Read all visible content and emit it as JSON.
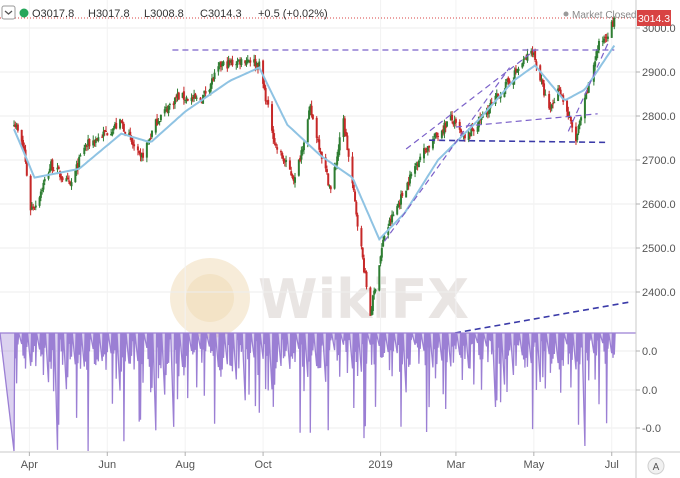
{
  "header": {
    "open": "O3017.8",
    "high": "H3017.8",
    "low": "L3008.8",
    "close": "C3014.3",
    "change": "+0.5 (+0.02%)",
    "status": "Market Closed",
    "last_price": "3014.3"
  },
  "watermark": "WikiFX",
  "footer": {
    "auto_label": "A"
  },
  "colors": {
    "up": "#2e7d32",
    "down": "#c62828",
    "ma": "#8fc3e3",
    "trend": "#7b61c9",
    "trend_dark": "#3a3aa8",
    "osc": "#9b7fd4",
    "price_tag": "#d84343"
  },
  "chart_data": [
    {
      "type": "candlestick",
      "title": "",
      "x_ticks": [
        "Apr",
        "Jun",
        "Aug",
        "Oct",
        "2019",
        "Mar",
        "May",
        "Jul"
      ],
      "y_ticks": [
        "3000.0",
        "2900.0",
        "2800.0",
        "2700.0",
        "2600.0",
        "2500.0",
        "2400.0"
      ],
      "ylim": [
        2340,
        3030
      ],
      "last_price": 3014.3,
      "anchor_path": [
        [
          "2018-03-20",
          2790
        ],
        [
          "2018-03-28",
          2720
        ],
        [
          "2018-04-02",
          2590
        ],
        [
          "2018-04-06",
          2600
        ],
        [
          "2018-04-18",
          2690
        ],
        [
          "2018-05-03",
          2640
        ],
        [
          "2018-05-14",
          2730
        ],
        [
          "2018-06-12",
          2785
        ],
        [
          "2018-06-27",
          2700
        ],
        [
          "2018-07-10",
          2790
        ],
        [
          "2018-07-26",
          2845
        ],
        [
          "2018-08-13",
          2835
        ],
        [
          "2018-08-29",
          2915
        ],
        [
          "2018-09-20",
          2930
        ],
        [
          "2018-09-28",
          2915
        ],
        [
          "2018-10-11",
          2730
        ],
        [
          "2018-10-26",
          2655
        ],
        [
          "2018-11-07",
          2815
        ],
        [
          "2018-11-23",
          2630
        ],
        [
          "2018-12-03",
          2790
        ],
        [
          "2018-12-24",
          2350
        ],
        [
          "2019-01-04",
          2530
        ],
        [
          "2019-01-31",
          2705
        ],
        [
          "2019-02-25",
          2795
        ],
        [
          "2019-03-08",
          2745
        ],
        [
          "2019-04-30",
          2950
        ],
        [
          "2019-05-13",
          2810
        ],
        [
          "2019-05-21",
          2865
        ],
        [
          "2019-06-03",
          2745
        ],
        [
          "2019-06-20",
          2955
        ],
        [
          "2019-07-03",
          3014.3
        ]
      ],
      "moving_average": [
        [
          "2018-03-20",
          2770
        ],
        [
          "2018-04-05",
          2660
        ],
        [
          "2018-05-10",
          2680
        ],
        [
          "2018-06-12",
          2760
        ],
        [
          "2018-07-05",
          2740
        ],
        [
          "2018-08-01",
          2810
        ],
        [
          "2018-09-05",
          2880
        ],
        [
          "2018-09-28",
          2910
        ],
        [
          "2018-10-20",
          2780
        ],
        [
          "2018-11-15",
          2710
        ],
        [
          "2018-12-10",
          2660
        ],
        [
          "2018-12-31",
          2520
        ],
        [
          "2019-01-20",
          2580
        ],
        [
          "2019-02-15",
          2700
        ],
        [
          "2019-03-20",
          2795
        ],
        [
          "2019-04-15",
          2880
        ],
        [
          "2019-05-02",
          2915
        ],
        [
          "2019-05-25",
          2835
        ],
        [
          "2019-06-10",
          2860
        ],
        [
          "2019-07-03",
          2960
        ]
      ],
      "trendlines": [
        {
          "style": "dashed",
          "color": "trend",
          "from": [
            "2018-07-22",
            2950
          ],
          "to": [
            "2019-07-03",
            2950
          ]
        },
        {
          "style": "dashed",
          "color": "trend",
          "from": [
            "2019-01-21",
            2725
          ],
          "to": [
            "2019-05-02",
            2950
          ]
        },
        {
          "style": "dashed",
          "color": "trend",
          "from": [
            "2019-01-04",
            2515
          ],
          "to": [
            "2019-04-12",
            2910
          ]
        },
        {
          "style": "dashed",
          "color": "trend",
          "from": [
            "2019-03-01",
            2775
          ],
          "to": [
            "2019-06-20",
            2805
          ]
        },
        {
          "style": "dashed",
          "color": "trend",
          "from": [
            "2019-05-28",
            2765
          ],
          "to": [
            "2019-06-28",
            2965
          ]
        },
        {
          "style": "dashed",
          "color": "trend_dark",
          "from": [
            "2019-02-08",
            2745
          ],
          "to": [
            "2019-06-28",
            2740
          ]
        }
      ]
    },
    {
      "type": "bar",
      "y_ticks": [
        "0.0",
        "0.0",
        "-0.0"
      ],
      "ylim": [
        -0.1,
        0.0
      ],
      "trendline": {
        "style": "dashed",
        "color": "trend_dark",
        "from": [
          "2019-03-01",
          0.0
        ],
        "to": [
          "2019-07-20",
          0.012
        ]
      }
    }
  ]
}
